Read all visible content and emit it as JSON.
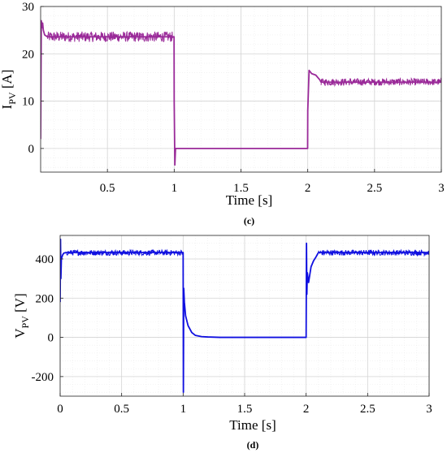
{
  "chart_data": [
    {
      "type": "line",
      "panel_label": "(c)",
      "xlabel": "Time [s]",
      "ylabel_main": "I",
      "ylabel_sub": "PV",
      "ylabel_unit": "[A]",
      "xlim": [
        0,
        3
      ],
      "ylim": [
        -5,
        30
      ],
      "xticks": [
        0.5,
        1,
        1.5,
        2,
        2.5,
        3
      ],
      "xtick_labels": [
        "0.5",
        "1",
        "1.5",
        "2",
        "2.5",
        "3"
      ],
      "yticks": [
        0,
        10,
        20,
        30
      ],
      "ytick_labels": [
        "0",
        "10",
        "20",
        "30"
      ],
      "grid": true,
      "color": "#9a2a99",
      "series": [
        {
          "x": [
            0,
            0.005,
            0.01,
            0.015,
            0.02,
            0.03,
            0.05,
            0.1,
            0.5,
            0.99,
            0.999,
            1.0,
            1.005,
            1.01,
            1.5,
            1.999,
            2.0,
            2.01,
            2.03,
            2.06,
            2.09,
            2.1,
            2.5,
            3.0
          ],
          "y": [
            2,
            27,
            25.5,
            26.5,
            25,
            24,
            23.6,
            23.6,
            23.6,
            23.6,
            23.6,
            10,
            -3.5,
            0,
            0,
            0,
            8,
            16.5,
            15.8,
            15.5,
            14.5,
            14,
            14,
            14
          ]
        }
      ],
      "noise_bands": [
        {
          "x_from": 0.05,
          "x_to": 0.99,
          "y_low": 22.5,
          "y_high": 24.7
        },
        {
          "x_from": 2.1,
          "x_to": 3.0,
          "y_low": 13.3,
          "y_high": 14.8
        }
      ]
    },
    {
      "type": "line",
      "panel_label": "(d)",
      "xlabel": "Time [s]",
      "ylabel_main": "V",
      "ylabel_sub": "PV",
      "ylabel_unit": "[V]",
      "xlim": [
        0,
        3
      ],
      "ylim": [
        -300,
        520
      ],
      "xticks": [
        0,
        0.5,
        1,
        1.5,
        2,
        2.5,
        3
      ],
      "xtick_labels": [
        "0",
        "0.5",
        "1",
        "1.5",
        "2",
        "2.5",
        "3"
      ],
      "yticks": [
        -200,
        0,
        200,
        400
      ],
      "ytick_labels": [
        "-200",
        "0",
        "200",
        "400"
      ],
      "grid": true,
      "color": "#1010e0",
      "series": [
        {
          "x": [
            0,
            0.003,
            0.006,
            0.01,
            0.02,
            0.03,
            0.05,
            0.5,
            0.995,
            1.0,
            1.002,
            1.005,
            1.01,
            1.02,
            1.04,
            1.07,
            1.1,
            1.15,
            1.2,
            1.3,
            1.5,
            1.999,
            2.0,
            2.003,
            2.006,
            2.01,
            2.02,
            2.04,
            2.06,
            2.08,
            2.1,
            2.5,
            3.0
          ],
          "y": [
            180,
            500,
            300,
            400,
            420,
            430,
            433,
            433,
            433,
            433,
            -280,
            250,
            180,
            110,
            60,
            25,
            10,
            4,
            2,
            0,
            0,
            0,
            0,
            480,
            220,
            330,
            280,
            360,
            390,
            410,
            433,
            433,
            433
          ]
        }
      ],
      "noise_bands": [
        {
          "x_from": 0.05,
          "x_to": 0.995,
          "y_low": 418,
          "y_high": 446
        },
        {
          "x_from": 2.1,
          "x_to": 3.0,
          "y_low": 418,
          "y_high": 446
        }
      ]
    }
  ]
}
